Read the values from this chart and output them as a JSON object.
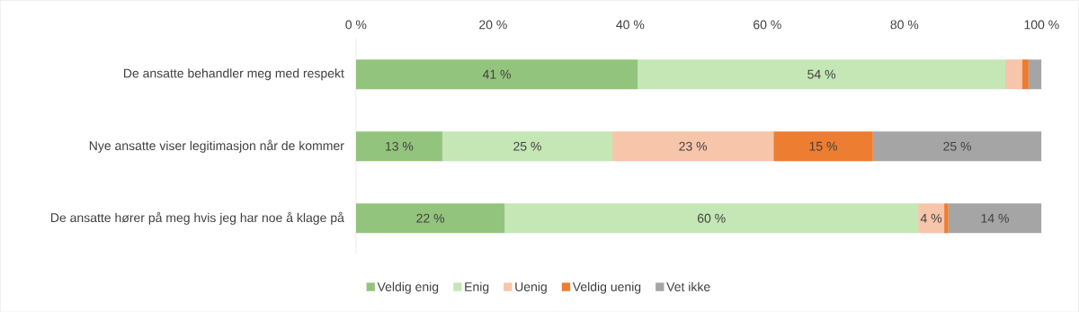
{
  "chart_data": {
    "type": "bar",
    "orientation": "horizontal",
    "stacked": true,
    "categories": [
      "De ansatte behandler meg med respekt",
      "Nye ansatte viser legitimasjon når de kommer",
      "De ansatte hører på meg hvis jeg har noe å klage på"
    ],
    "series": [
      {
        "name": "Veldig enig",
        "color": "#93c47d",
        "values": [
          41.1,
          12.6,
          21.7
        ],
        "value_labels": [
          "41 %",
          "13 %",
          "22 %"
        ]
      },
      {
        "name": "Enig",
        "color": "#c4e7b5",
        "values": [
          53.6,
          24.8,
          60.3
        ],
        "value_labels": [
          "54 %",
          "25 %",
          "60 %"
        ]
      },
      {
        "name": "Uenig",
        "color": "#f6c5aa",
        "values": [
          2.5,
          23.5,
          3.8
        ],
        "value_labels": [
          null,
          "23 %",
          "4 %"
        ]
      },
      {
        "name": "Veldig uenig",
        "color": "#ed7d31",
        "values": [
          0.9,
          14.5,
          0.6
        ],
        "value_labels": [
          null,
          "15 %",
          null
        ]
      },
      {
        "name": "Vet ikke",
        "color": "#a5a5a5",
        "values": [
          1.9,
          24.6,
          13.6
        ],
        "value_labels": [
          null,
          "25 %",
          "14 %"
        ]
      }
    ],
    "xlim": [
      0,
      100
    ],
    "xticks": [
      {
        "value": 0,
        "label": "0 %"
      },
      {
        "value": 20,
        "label": "20 %"
      },
      {
        "value": 40,
        "label": "40 %"
      },
      {
        "value": 60,
        "label": "60 %"
      },
      {
        "value": 80,
        "label": "80 %"
      },
      {
        "value": 100,
        "label": "100 %"
      }
    ],
    "legend": "bottom",
    "grid": false
  }
}
